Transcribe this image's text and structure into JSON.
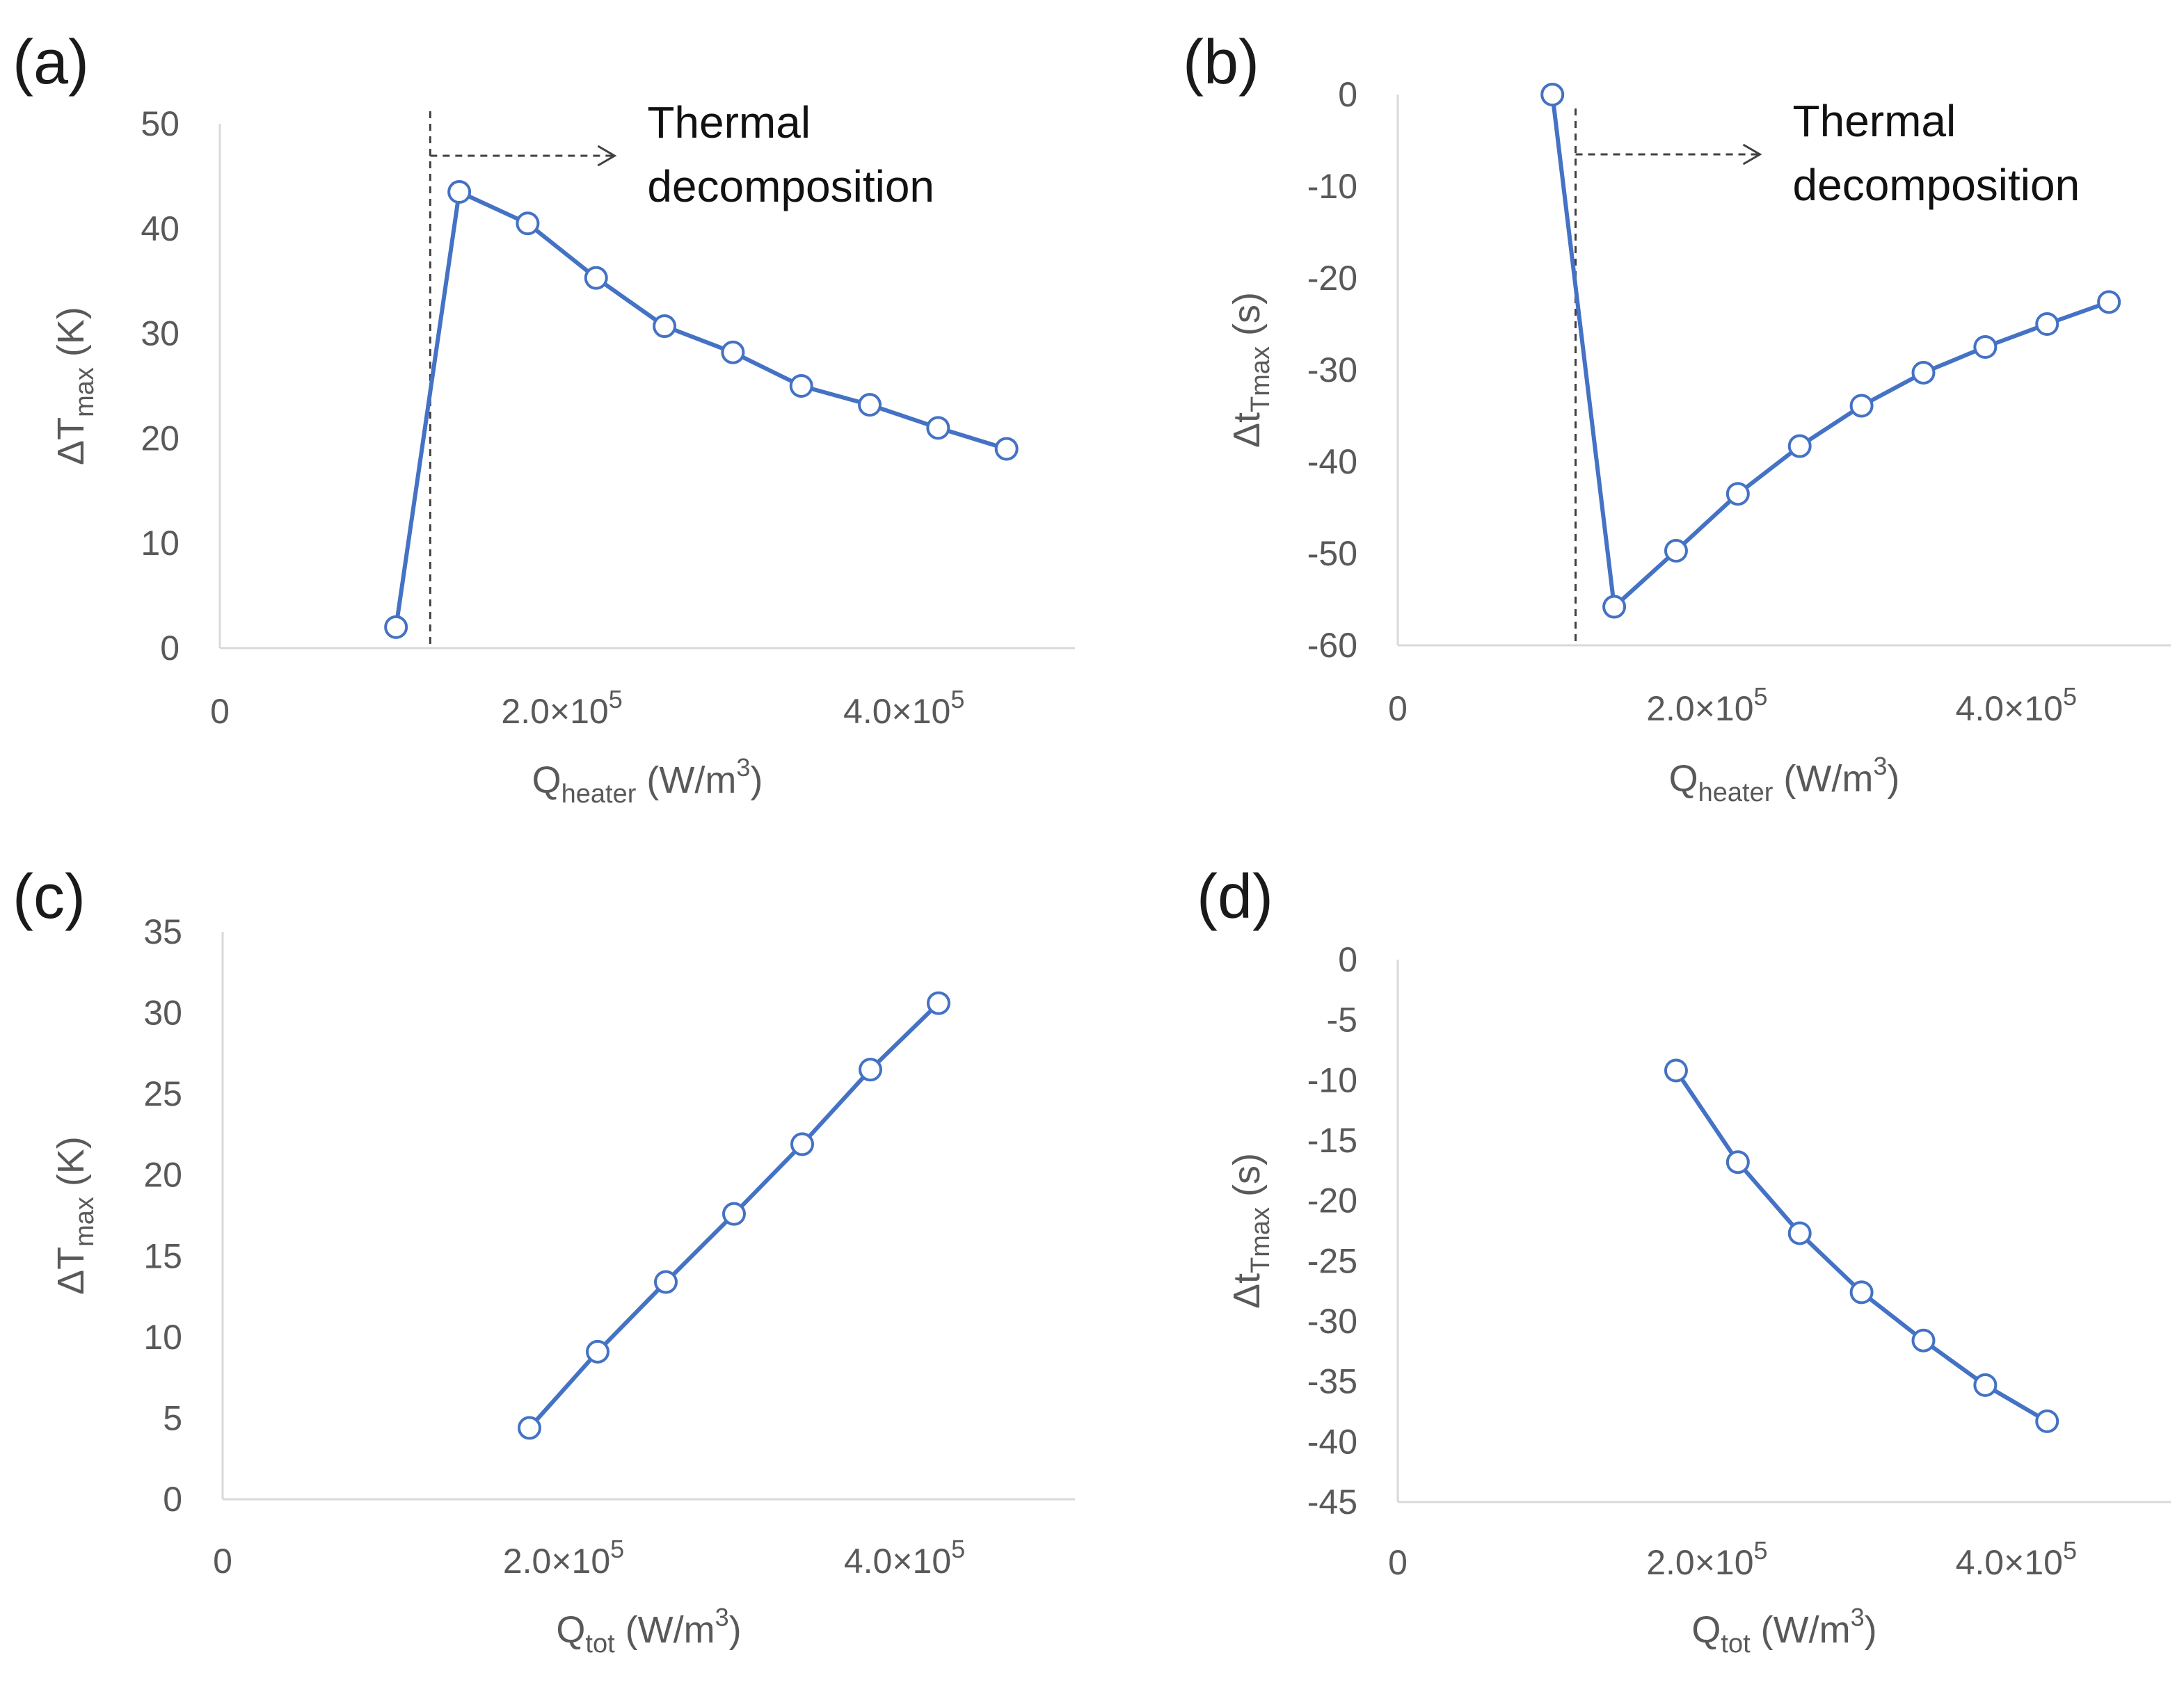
{
  "chart_data": [
    {
      "id": "a",
      "type": "line",
      "panel_label": "(a)",
      "ylabel_main": "ΔT",
      "ylabel_sub": "max",
      "ylabel_tail": " (K)",
      "xlabel_main": "Q",
      "xlabel_sub": "heater",
      "xlabel_tail": " (W/m",
      "xlabel_sup": "3",
      "xlabel_end": ")",
      "xlim": [
        0,
        500000
      ],
      "ylim": [
        0,
        50
      ],
      "yticks": [
        0,
        10,
        20,
        30,
        40,
        50
      ],
      "xticks": [
        {
          "value": 0,
          "label": "0"
        },
        {
          "value": 200000,
          "label": "2.0×10",
          "sup": "5"
        },
        {
          "value": 400000,
          "label": "4.0×10",
          "sup": "5"
        }
      ],
      "x": [
        103000,
        140000,
        180000,
        220000,
        260000,
        300000,
        340000,
        380000,
        420000,
        460000
      ],
      "y": [
        2,
        43.5,
        40.5,
        35.3,
        30.7,
        28.2,
        25,
        23.2,
        21,
        19
      ],
      "vline_x": 123000,
      "annotation": [
        "Thermal",
        "decomposition"
      ]
    },
    {
      "id": "b",
      "type": "line",
      "panel_label": "(b)",
      "ylabel_main": "Δt",
      "ylabel_sub": "Tmax",
      "ylabel_tail": " (s)",
      "xlabel_main": "Q",
      "xlabel_sub": "heater",
      "xlabel_tail": " (W/m",
      "xlabel_sup": "3",
      "xlabel_end": ")",
      "xlim": [
        0,
        500000
      ],
      "ylim": [
        -60,
        0
      ],
      "yticks": [
        -60,
        -50,
        -40,
        -30,
        -20,
        -10,
        0
      ],
      "xticks": [
        {
          "value": 0,
          "label": "0"
        },
        {
          "value": 200000,
          "label": "2.0×10",
          "sup": "5"
        },
        {
          "value": 400000,
          "label": "4.0×10",
          "sup": "5"
        }
      ],
      "x": [
        100000,
        140000,
        180000,
        220000,
        260000,
        300000,
        340000,
        380000,
        420000,
        460000
      ],
      "y": [
        0,
        -55.8,
        -49.7,
        -43.5,
        -38.3,
        -33.9,
        -30.3,
        -27.5,
        -25,
        -22.6
      ],
      "vline_x": 115000,
      "annotation": [
        "Thermal",
        "decomposition"
      ]
    },
    {
      "id": "c",
      "type": "line",
      "panel_label": "(c)",
      "ylabel_main": "ΔT",
      "ylabel_sub": "max",
      "ylabel_tail": " (K)",
      "xlabel_main": "Q",
      "xlabel_sub": "tot",
      "xlabel_tail": " (W/m",
      "xlabel_sup": "3",
      "xlabel_end": ")",
      "xlim": [
        0,
        500000
      ],
      "ylim": [
        0,
        35
      ],
      "yticks": [
        0,
        5,
        10,
        15,
        20,
        25,
        30,
        35
      ],
      "xticks": [
        {
          "value": 0,
          "label": "0"
        },
        {
          "value": 200000,
          "label": "2.0×10",
          "sup": "5"
        },
        {
          "value": 400000,
          "label": "4.0×10",
          "sup": "5"
        }
      ],
      "x": [
        180000,
        220000,
        260000,
        300000,
        340000,
        380000,
        420000
      ],
      "y": [
        4.4,
        9.1,
        13.4,
        17.6,
        21.9,
        26.5,
        30.6
      ]
    },
    {
      "id": "d",
      "type": "line",
      "panel_label": "(d)",
      "ylabel_main": "Δt",
      "ylabel_sub": "Tmax",
      "ylabel_tail": " (s)",
      "xlabel_main": "Q",
      "xlabel_sub": "tot",
      "xlabel_tail": " (W/m",
      "xlabel_sup": "3",
      "xlabel_end": ")",
      "xlim": [
        0,
        500000
      ],
      "ylim": [
        -45,
        0
      ],
      "yticks": [
        -45,
        -40,
        -35,
        -30,
        -25,
        -20,
        -15,
        -10,
        -5,
        0
      ],
      "xticks": [
        {
          "value": 0,
          "label": "0"
        },
        {
          "value": 200000,
          "label": "2.0×10",
          "sup": "5"
        },
        {
          "value": 400000,
          "label": "4.0×10",
          "sup": "5"
        }
      ],
      "x": [
        180000,
        220000,
        260000,
        300000,
        340000,
        380000,
        420000
      ],
      "y": [
        -9.2,
        -16.8,
        -22.7,
        -27.6,
        -31.6,
        -35.3,
        -38.3
      ]
    }
  ],
  "colors": {
    "series": "#4472c4",
    "axis": "#d9d9d9",
    "text": "#595959"
  }
}
